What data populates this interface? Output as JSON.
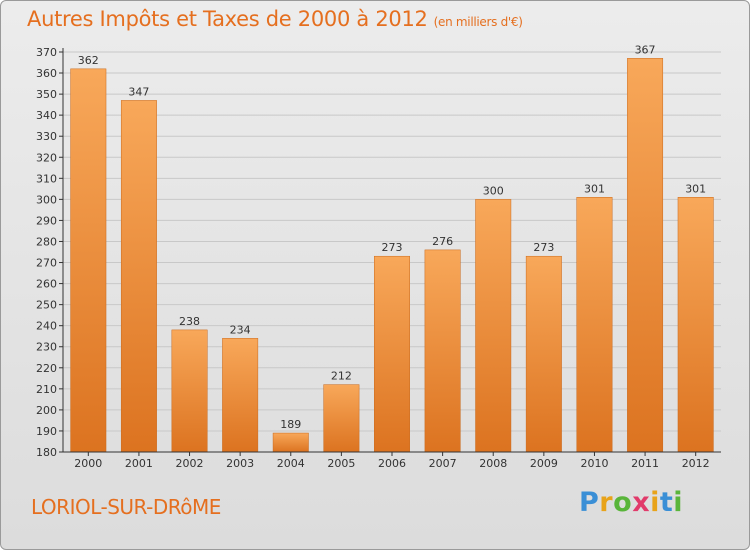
{
  "header": {
    "title": "Autres Impôts et Taxes de 2000 à 2012",
    "unit": "(en milliers d'€)"
  },
  "footer": {
    "place": "LORIOL-SUR-DRôME",
    "logo": {
      "letters": [
        "P",
        "r",
        "o",
        "x",
        "i",
        "t",
        "i"
      ],
      "colors": [
        "#3a8fd6",
        "#e8a319",
        "#59b53a",
        "#e13a6a",
        "#e8a319",
        "#3a8fd6",
        "#59b53a"
      ]
    }
  },
  "chart_data": {
    "type": "bar",
    "categories": [
      "2000",
      "2001",
      "2002",
      "2003",
      "2004",
      "2005",
      "2006",
      "2007",
      "2008",
      "2009",
      "2010",
      "2011",
      "2012"
    ],
    "values": [
      362,
      347,
      238,
      234,
      189,
      212,
      273,
      276,
      300,
      273,
      301,
      367,
      301
    ],
    "ylim": [
      180,
      370
    ],
    "yticks": [
      180,
      190,
      200,
      210,
      220,
      230,
      240,
      250,
      260,
      270,
      280,
      290,
      300,
      310,
      320,
      330,
      340,
      350,
      360,
      370
    ],
    "grid": true,
    "colors": {
      "bar_light": "#f8a85a",
      "bar_dark": "#dc7320",
      "axis": "#333333",
      "grid": "#c8c8c8"
    }
  }
}
